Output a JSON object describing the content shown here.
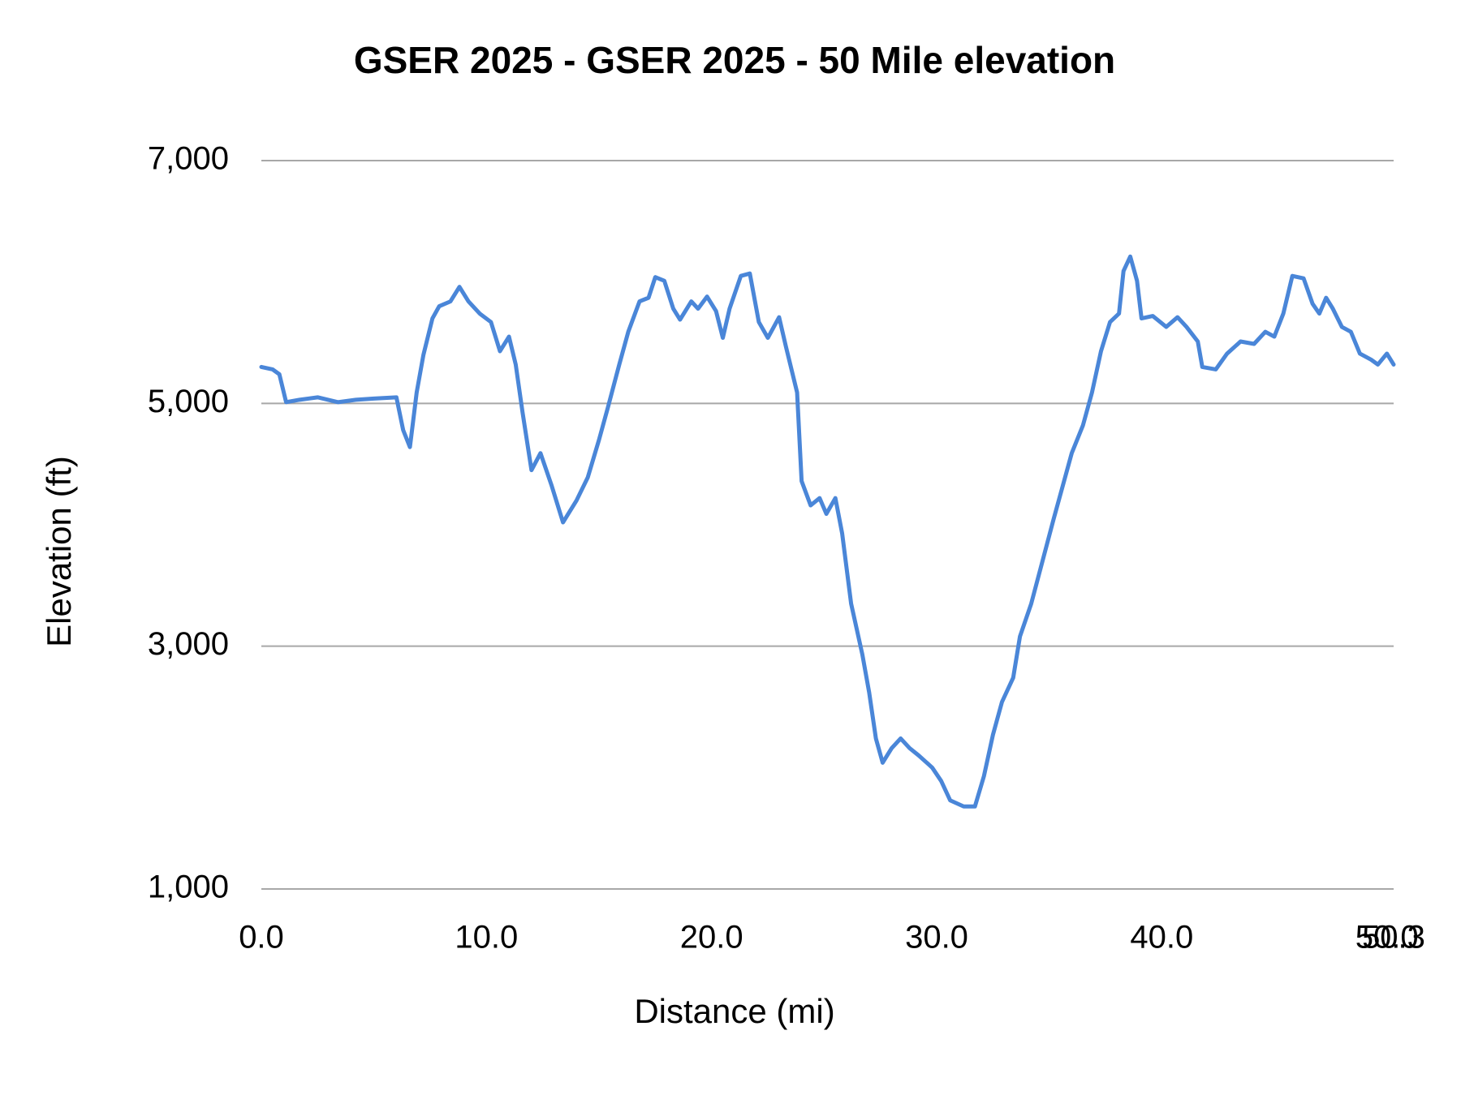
{
  "chart_data": {
    "type": "line",
    "title": "GSER 2025 - GSER 2025 - 50 Mile elevation",
    "x_label": "Distance (mi)",
    "y_label": "Elevation (ft)",
    "xlim": [
      0,
      50.3
    ],
    "xticks": [
      {
        "value": 0,
        "label": "0.0"
      },
      {
        "value": 10,
        "label": "10.0"
      },
      {
        "value": 20,
        "label": "20.0"
      },
      {
        "value": 30,
        "label": "30.0"
      },
      {
        "value": 40,
        "label": "40.0"
      },
      {
        "value": 50,
        "label": "50.0"
      },
      50.3
    ],
    "ylim": [
      1000,
      7000
    ],
    "yticks": [
      {
        "value": 1000,
        "label": "1,000"
      },
      {
        "value": 3000,
        "label": "3,000"
      },
      {
        "value": 5000,
        "label": "5,000"
      },
      {
        "value": 7000,
        "label": "7,000"
      }
    ],
    "grid": true,
    "x": [
      0,
      0.5,
      0.8,
      1.1,
      1.7,
      2.5,
      3.4,
      4.2,
      5.0,
      6.0,
      6.3,
      6.6,
      6.9,
      7.2,
      7.6,
      7.9,
      8.4,
      8.8,
      9.2,
      9.7,
      10.2,
      10.6,
      11.0,
      11.3,
      11.6,
      12.0,
      12.4,
      12.9,
      13.4,
      14.0,
      14.5,
      15.0,
      15.4,
      15.9,
      16.3,
      16.8,
      17.2,
      17.5,
      17.9,
      18.3,
      18.6,
      19.1,
      19.4,
      19.8,
      20.2,
      20.5,
      20.8,
      21.3,
      21.7,
      22.1,
      22.5,
      23.0,
      23.3,
      23.8,
      24.0,
      24.4,
      24.8,
      25.1,
      25.5,
      25.8,
      26.2,
      26.7,
      27.0,
      27.3,
      27.6,
      28.0,
      28.4,
      28.8,
      29.2,
      29.8,
      30.2,
      30.6,
      31.2,
      31.7,
      32.1,
      32.5,
      32.9,
      33.4,
      33.7,
      34.2,
      34.7,
      35.2,
      35.6,
      36.0,
      36.5,
      36.9,
      37.3,
      37.7,
      38.1,
      38.3,
      38.6,
      38.9,
      39.1,
      39.6,
      40.2,
      40.7,
      41.1,
      41.6,
      41.8,
      42.4,
      42.9,
      43.5,
      44.1,
      44.6,
      45.0,
      45.4,
      45.8,
      46.3,
      46.7,
      47.0,
      47.3,
      47.6,
      48.0,
      48.4,
      48.8,
      49.3,
      49.6,
      50.0,
      50.3
    ],
    "series": [
      {
        "name": "Elevation",
        "color": "#4a86d8",
        "values": [
          5300,
          5280,
          5240,
          5010,
          5030,
          5050,
          5010,
          5030,
          5040,
          5050,
          4780,
          4640,
          5090,
          5400,
          5700,
          5800,
          5840,
          5960,
          5840,
          5740,
          5670,
          5430,
          5550,
          5320,
          4930,
          4450,
          4590,
          4320,
          4020,
          4200,
          4390,
          4700,
          4970,
          5320,
          5590,
          5840,
          5870,
          6040,
          6010,
          5780,
          5690,
          5840,
          5780,
          5880,
          5760,
          5540,
          5780,
          6050,
          6070,
          5670,
          5540,
          5710,
          5470,
          5090,
          4360,
          4160,
          4220,
          4090,
          4220,
          3930,
          3350,
          2930,
          2620,
          2240,
          2040,
          2160,
          2240,
          2160,
          2100,
          2000,
          1890,
          1730,
          1680,
          1680,
          1930,
          2270,
          2540,
          2740,
          3080,
          3350,
          3700,
          4050,
          4320,
          4590,
          4820,
          5090,
          5430,
          5670,
          5740,
          6090,
          6210,
          6010,
          5700,
          5720,
          5630,
          5710,
          5630,
          5510,
          5300,
          5280,
          5410,
          5510,
          5490,
          5590,
          5550,
          5740,
          6050,
          6030,
          5820,
          5740,
          5870,
          5780,
          5630,
          5590,
          5410,
          5360,
          5320,
          5410,
          5320
        ]
      }
    ]
  }
}
